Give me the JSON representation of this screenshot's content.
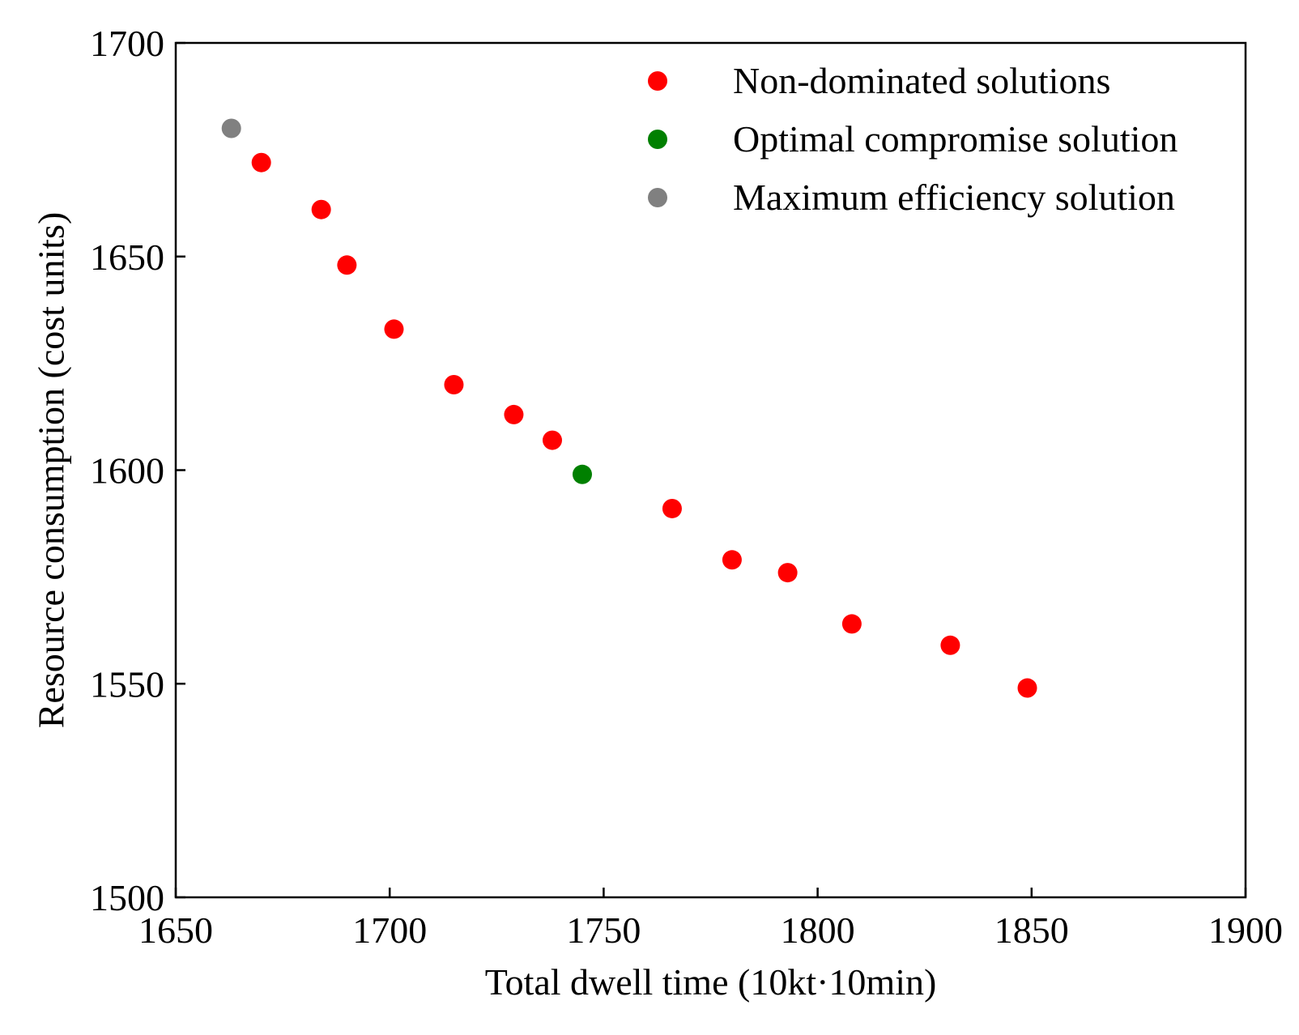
{
  "chart_data": {
    "type": "scatter",
    "title": "",
    "xlabel": "Total dwell time (10kt·10min)",
    "ylabel": "Resource consumption (cost units)",
    "xlim": [
      1650,
      1900
    ],
    "ylim": [
      1500,
      1700
    ],
    "xticks": [
      1650,
      1700,
      1750,
      1800,
      1850,
      1900
    ],
    "yticks": [
      1500,
      1550,
      1600,
      1650,
      1700
    ],
    "xtick_labels": [
      "1650",
      "1700",
      "1750",
      "1800",
      "1850",
      "1900"
    ],
    "ytick_labels": [
      "1500",
      "1550",
      "1600",
      "1650",
      "1700"
    ],
    "grid": false,
    "legend_position": "top-right",
    "series": [
      {
        "name": "Non-dominated solutions",
        "color": "#ff0000",
        "points": [
          {
            "x": 1670,
            "y": 1672
          },
          {
            "x": 1684,
            "y": 1661
          },
          {
            "x": 1690,
            "y": 1648
          },
          {
            "x": 1701,
            "y": 1633
          },
          {
            "x": 1715,
            "y": 1620
          },
          {
            "x": 1729,
            "y": 1613
          },
          {
            "x": 1738,
            "y": 1607
          },
          {
            "x": 1766,
            "y": 1591
          },
          {
            "x": 1780,
            "y": 1579
          },
          {
            "x": 1793,
            "y": 1576
          },
          {
            "x": 1808,
            "y": 1564
          },
          {
            "x": 1831,
            "y": 1559
          },
          {
            "x": 1849,
            "y": 1549
          }
        ]
      },
      {
        "name": "Optimal compromise solution",
        "color": "#008000",
        "points": [
          {
            "x": 1745,
            "y": 1599
          }
        ]
      },
      {
        "name": "Maximum efficiency solution",
        "color": "#808080",
        "points": [
          {
            "x": 1663,
            "y": 1680
          }
        ]
      }
    ]
  }
}
